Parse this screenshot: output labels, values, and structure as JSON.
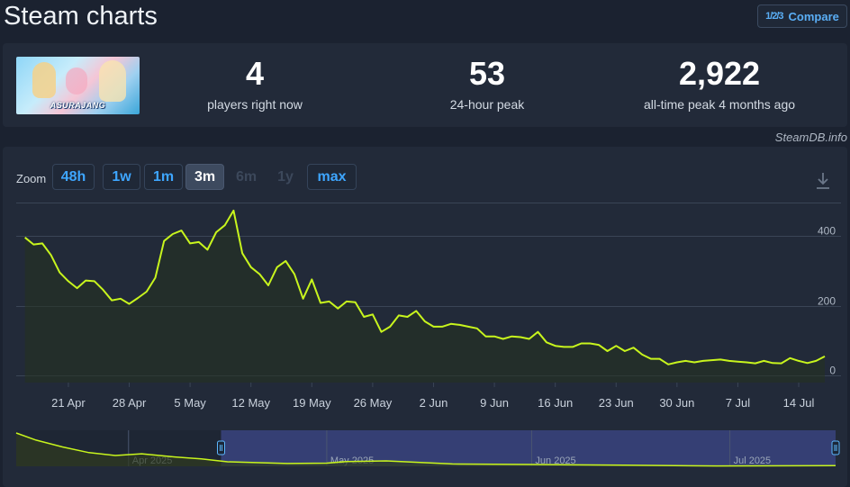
{
  "page": {
    "title": "Steam charts",
    "compare_label": "Compare",
    "compare_icon": "1/2/3"
  },
  "game": {
    "logo_text": "ASURAJANG"
  },
  "stats": [
    {
      "value": "4",
      "label": "players right now"
    },
    {
      "value": "53",
      "label": "24-hour peak"
    },
    {
      "value": "2,922",
      "label": "all-time peak 4 months ago"
    }
  ],
  "attribution": "SteamDB.info",
  "zoom": {
    "label": "Zoom",
    "options": [
      {
        "label": "48h",
        "state": "enabled"
      },
      {
        "label": "1w",
        "state": "enabled"
      },
      {
        "label": "1m",
        "state": "enabled"
      },
      {
        "label": "3m",
        "state": "active"
      },
      {
        "label": "6m",
        "state": "disabled"
      },
      {
        "label": "1y",
        "state": "disabled"
      },
      {
        "label": "max",
        "state": "enabled"
      }
    ]
  },
  "colors": {
    "line": "#c8f51d",
    "area": "#25311f",
    "grid": "#3a4556",
    "navigator_selection": "#3a4480",
    "navigator_handle": "#5cb8ff"
  },
  "chart_data": {
    "type": "line",
    "series": [
      {
        "values": [
          [
            "2025-04-16",
            395
          ],
          [
            "2025-04-17",
            375
          ],
          [
            "2025-04-18",
            378
          ],
          [
            "2025-04-19",
            345
          ],
          [
            "2025-04-20",
            295
          ],
          [
            "2025-04-21",
            270
          ],
          [
            "2025-04-22",
            250
          ],
          [
            "2025-04-23",
            272
          ],
          [
            "2025-04-24",
            270
          ],
          [
            "2025-04-25",
            245
          ],
          [
            "2025-04-26",
            215
          ],
          [
            "2025-04-27",
            220
          ],
          [
            "2025-04-28",
            205
          ],
          [
            "2025-04-29",
            222
          ],
          [
            "2025-04-30",
            240
          ],
          [
            "2025-05-01",
            280
          ],
          [
            "2025-05-02",
            385
          ],
          [
            "2025-05-03",
            405
          ],
          [
            "2025-05-04",
            415
          ],
          [
            "2025-05-05",
            378
          ],
          [
            "2025-05-06",
            382
          ],
          [
            "2025-05-07",
            360
          ],
          [
            "2025-05-08",
            410
          ],
          [
            "2025-05-09",
            430
          ],
          [
            "2025-05-10",
            472
          ],
          [
            "2025-05-11",
            350
          ],
          [
            "2025-05-12",
            310
          ],
          [
            "2025-05-13",
            290
          ],
          [
            "2025-05-14",
            258
          ],
          [
            "2025-05-15",
            310
          ],
          [
            "2025-05-16",
            328
          ],
          [
            "2025-05-17",
            290
          ],
          [
            "2025-05-18",
            220
          ],
          [
            "2025-05-19",
            275
          ],
          [
            "2025-05-20",
            208
          ],
          [
            "2025-05-21",
            212
          ],
          [
            "2025-05-22",
            192
          ],
          [
            "2025-05-23",
            212
          ],
          [
            "2025-05-24",
            210
          ],
          [
            "2025-05-25",
            168
          ],
          [
            "2025-05-26",
            175
          ],
          [
            "2025-05-27",
            125
          ],
          [
            "2025-05-28",
            140
          ],
          [
            "2025-05-29",
            172
          ],
          [
            "2025-05-30",
            168
          ],
          [
            "2025-05-31",
            185
          ],
          [
            "2025-06-01",
            155
          ],
          [
            "2025-06-02",
            140
          ],
          [
            "2025-06-03",
            140
          ],
          [
            "2025-06-04",
            148
          ],
          [
            "2025-06-05",
            145
          ],
          [
            "2025-06-06",
            140
          ],
          [
            "2025-06-07",
            135
          ],
          [
            "2025-06-08",
            112
          ],
          [
            "2025-06-09",
            112
          ],
          [
            "2025-06-10",
            105
          ],
          [
            "2025-06-11",
            112
          ],
          [
            "2025-06-12",
            110
          ],
          [
            "2025-06-13",
            105
          ],
          [
            "2025-06-14",
            125
          ],
          [
            "2025-06-15",
            95
          ],
          [
            "2025-06-16",
            85
          ],
          [
            "2025-06-17",
            82
          ],
          [
            "2025-06-18",
            82
          ],
          [
            "2025-06-19",
            92
          ],
          [
            "2025-06-20",
            92
          ],
          [
            "2025-06-21",
            88
          ],
          [
            "2025-06-22",
            70
          ],
          [
            "2025-06-23",
            85
          ],
          [
            "2025-06-24",
            70
          ],
          [
            "2025-06-25",
            80
          ],
          [
            "2025-06-26",
            60
          ],
          [
            "2025-06-27",
            48
          ],
          [
            "2025-06-28",
            48
          ],
          [
            "2025-06-29",
            32
          ],
          [
            "2025-06-30",
            38
          ],
          [
            "2025-07-01",
            42
          ],
          [
            "2025-07-02",
            38
          ],
          [
            "2025-07-03",
            42
          ],
          [
            "2025-07-04",
            44
          ],
          [
            "2025-07-05",
            46
          ],
          [
            "2025-07-06",
            42
          ],
          [
            "2025-07-07",
            40
          ],
          [
            "2025-07-08",
            38
          ],
          [
            "2025-07-09",
            35
          ],
          [
            "2025-07-10",
            42
          ],
          [
            "2025-07-11",
            36
          ],
          [
            "2025-07-12",
            35
          ],
          [
            "2025-07-13",
            50
          ],
          [
            "2025-07-14",
            42
          ],
          [
            "2025-07-15",
            36
          ],
          [
            "2025-07-16",
            42
          ],
          [
            "2025-07-17",
            55
          ]
        ]
      }
    ],
    "xlim": [
      "2025-04-15",
      "2025-07-17"
    ],
    "ylim": [
      -20,
      495
    ],
    "ytick_values": [
      0,
      200,
      400
    ],
    "ytick_labels": [
      "0",
      "200",
      "400"
    ],
    "xtick_values": [
      "2025-04-21",
      "2025-04-28",
      "2025-05-05",
      "2025-05-12",
      "2025-05-19",
      "2025-05-26",
      "2025-06-02",
      "2025-06-09",
      "2025-06-16",
      "2025-06-23",
      "2025-06-30",
      "2025-07-07",
      "2025-07-14"
    ],
    "xtick_labels": [
      "21 Apr",
      "28 Apr",
      "5 May",
      "12 May",
      "19 May",
      "26 May",
      "2 Jun",
      "9 Jun",
      "16 Jun",
      "23 Jun",
      "30 Jun",
      "7 Jul",
      "14 Jul"
    ],
    "grid": true,
    "navigator": {
      "range": [
        "2025-03-15",
        "2025-07-17"
      ],
      "selected_range": [
        "2025-04-15",
        "2025-07-17"
      ],
      "label_values": [
        "2025-04-01",
        "2025-05-01",
        "2025-06-01",
        "2025-07-01"
      ],
      "labels": [
        "Apr 2025",
        "May 2025",
        "Jun 2025",
        "Jul 2025"
      ],
      "values": [
        [
          "2025-03-15",
          2922
        ],
        [
          "2025-03-18",
          2300
        ],
        [
          "2025-03-22",
          1700
        ],
        [
          "2025-03-26",
          1200
        ],
        [
          "2025-03-30",
          950
        ],
        [
          "2025-04-03",
          1100
        ],
        [
          "2025-04-08",
          820
        ],
        [
          "2025-04-12",
          650
        ],
        [
          "2025-04-16",
          395
        ],
        [
          "2025-04-25",
          245
        ],
        [
          "2025-05-01",
          280
        ],
        [
          "2025-05-04",
          415
        ],
        [
          "2025-05-10",
          472
        ],
        [
          "2025-05-20",
          208
        ],
        [
          "2025-06-01",
          155
        ],
        [
          "2025-06-15",
          95
        ],
        [
          "2025-06-29",
          32
        ],
        [
          "2025-07-17",
          55
        ]
      ]
    }
  }
}
